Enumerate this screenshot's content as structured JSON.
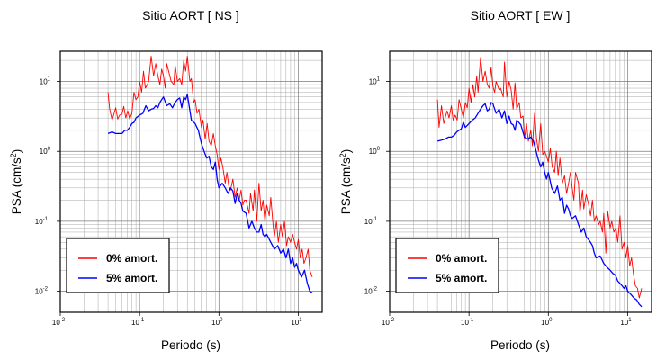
{
  "chart_data": [
    {
      "type": "line",
      "title": "Sitio AORT [ NS ]",
      "xlabel": "Periodo (s)",
      "ylabel": "PSA (cm/s²)",
      "xscale": "log",
      "yscale": "log",
      "xlim": [
        0.01,
        20
      ],
      "ylim": [
        0.005,
        27
      ],
      "x_ticks": [
        {
          "base": "10",
          "exp": "-2"
        },
        {
          "base": "10",
          "exp": "-1"
        },
        {
          "base": "10",
          "exp": "0"
        },
        {
          "base": "10",
          "exp": "1"
        }
      ],
      "y_ticks": [
        {
          "base": "10",
          "exp": "-2"
        },
        {
          "base": "10",
          "exp": "-1"
        },
        {
          "base": "10",
          "exp": "0"
        },
        {
          "base": "10",
          "exp": "1"
        }
      ],
      "grid": true,
      "legend_position": "bottom-left",
      "series": [
        {
          "name": "0% amort.",
          "color": "#ff0000",
          "x": [
            0.04,
            0.042,
            0.045,
            0.048,
            0.05,
            0.053,
            0.056,
            0.06,
            0.063,
            0.067,
            0.071,
            0.075,
            0.08,
            0.085,
            0.09,
            0.095,
            0.1,
            0.106,
            0.112,
            0.118,
            0.125,
            0.13,
            0.14,
            0.15,
            0.16,
            0.17,
            0.18,
            0.19,
            0.2,
            0.21,
            0.22,
            0.24,
            0.25,
            0.27,
            0.28,
            0.3,
            0.32,
            0.34,
            0.36,
            0.38,
            0.4,
            0.43,
            0.45,
            0.48,
            0.5,
            0.53,
            0.56,
            0.6,
            0.63,
            0.67,
            0.71,
            0.75,
            0.8,
            0.85,
            0.9,
            0.95,
            1.0,
            1.06,
            1.12,
            1.2,
            1.26,
            1.33,
            1.4,
            1.5,
            1.6,
            1.7,
            1.8,
            1.9,
            2.0,
            2.1,
            2.2,
            2.4,
            2.5,
            2.7,
            2.8,
            3.0,
            3.2,
            3.4,
            3.6,
            3.8,
            4.0,
            4.3,
            4.5,
            4.8,
            5.0,
            5.3,
            5.6,
            6.0,
            6.3,
            6.7,
            7.1,
            7.5,
            8.0,
            8.5,
            9.0,
            9.5,
            10.0,
            10.6,
            11.2,
            11.8,
            12.5,
            13.3,
            14.0,
            15.0
          ],
          "y": [
            7.0,
            4.0,
            2.8,
            3.6,
            4.2,
            2.9,
            3.3,
            3.4,
            4.4,
            3.0,
            3.8,
            2.9,
            3.5,
            7.0,
            5.5,
            6.0,
            10.0,
            7.0,
            14.0,
            8.0,
            9.0,
            10.0,
            23.0,
            12.0,
            18.0,
            12.0,
            9.0,
            15.0,
            12.0,
            8.0,
            18.0,
            12.0,
            10.0,
            9.0,
            17.0,
            10.0,
            11.0,
            9.0,
            20.0,
            14.0,
            23.0,
            10.0,
            11.0,
            5.0,
            5.5,
            3.5,
            4.0,
            2.2,
            2.8,
            1.5,
            2.5,
            1.4,
            1.2,
            1.8,
            1.2,
            0.9,
            0.55,
            0.8,
            0.6,
            0.35,
            0.5,
            0.32,
            0.28,
            0.4,
            0.22,
            0.3,
            0.2,
            0.28,
            0.17,
            0.2,
            0.2,
            0.13,
            0.25,
            0.14,
            0.28,
            0.1,
            0.35,
            0.14,
            0.2,
            0.1,
            0.17,
            0.12,
            0.22,
            0.09,
            0.06,
            0.1,
            0.05,
            0.09,
            0.06,
            0.1,
            0.045,
            0.06,
            0.05,
            0.065,
            0.05,
            0.04,
            0.055,
            0.03,
            0.04,
            0.025,
            0.03,
            0.04,
            0.02,
            0.016
          ]
        },
        {
          "name": "5% amort.",
          "color": "#0000ff",
          "x": [
            0.04,
            0.045,
            0.05,
            0.055,
            0.06,
            0.065,
            0.07,
            0.075,
            0.08,
            0.085,
            0.09,
            0.1,
            0.11,
            0.12,
            0.13,
            0.14,
            0.15,
            0.16,
            0.17,
            0.18,
            0.19,
            0.2,
            0.22,
            0.24,
            0.26,
            0.28,
            0.3,
            0.32,
            0.34,
            0.36,
            0.38,
            0.4,
            0.45,
            0.5,
            0.55,
            0.6,
            0.65,
            0.7,
            0.75,
            0.8,
            0.85,
            0.9,
            0.95,
            1.0,
            1.1,
            1.2,
            1.3,
            1.4,
            1.5,
            1.6,
            1.7,
            1.8,
            1.9,
            2.0,
            2.2,
            2.4,
            2.6,
            2.8,
            3.0,
            3.2,
            3.4,
            3.6,
            3.8,
            4.0,
            4.5,
            5.0,
            5.5,
            6.0,
            6.5,
            7.0,
            7.5,
            8.0,
            8.5,
            9.0,
            9.5,
            10.0,
            11.0,
            12.0,
            13.0,
            14.0,
            15.0
          ],
          "y": [
            1.8,
            1.9,
            1.8,
            1.8,
            1.8,
            2.0,
            2.0,
            2.2,
            2.5,
            2.6,
            3.0,
            3.3,
            3.5,
            4.5,
            3.8,
            4.0,
            4.1,
            4.5,
            4.2,
            5.0,
            5.5,
            6.0,
            4.5,
            4.8,
            4.2,
            5.0,
            5.5,
            5.8,
            4.2,
            6.0,
            5.5,
            6.5,
            2.8,
            2.5,
            2.0,
            1.3,
            1.0,
            0.8,
            0.85,
            0.6,
            0.55,
            0.7,
            0.4,
            0.3,
            0.35,
            0.3,
            0.25,
            0.3,
            0.27,
            0.18,
            0.25,
            0.2,
            0.18,
            0.14,
            0.13,
            0.08,
            0.1,
            0.08,
            0.07,
            0.07,
            0.09,
            0.065,
            0.06,
            0.065,
            0.05,
            0.04,
            0.045,
            0.035,
            0.04,
            0.03,
            0.04,
            0.025,
            0.03,
            0.022,
            0.025,
            0.02,
            0.016,
            0.02,
            0.013,
            0.01,
            0.0095
          ]
        }
      ]
    },
    {
      "type": "line",
      "title": "Sitio AORT [ EW ]",
      "xlabel": "Periodo (s)",
      "ylabel": "PSA (cm/s²)",
      "xscale": "log",
      "yscale": "log",
      "xlim": [
        0.01,
        20
      ],
      "ylim": [
        0.005,
        27
      ],
      "x_ticks": [
        {
          "base": "10",
          "exp": "-2"
        },
        {
          "base": "10",
          "exp": "-1"
        },
        {
          "base": "10",
          "exp": "0"
        },
        {
          "base": "10",
          "exp": "1"
        }
      ],
      "y_ticks": [
        {
          "base": "10",
          "exp": "-2"
        },
        {
          "base": "10",
          "exp": "-1"
        },
        {
          "base": "10",
          "exp": "0"
        },
        {
          "base": "10",
          "exp": "1"
        }
      ],
      "grid": true,
      "legend_position": "bottom-left",
      "series": [
        {
          "name": "0% amort.",
          "color": "#ff0000",
          "x": [
            0.04,
            0.042,
            0.045,
            0.048,
            0.05,
            0.053,
            0.056,
            0.06,
            0.063,
            0.067,
            0.071,
            0.075,
            0.08,
            0.085,
            0.09,
            0.095,
            0.1,
            0.106,
            0.112,
            0.118,
            0.125,
            0.13,
            0.14,
            0.15,
            0.16,
            0.17,
            0.18,
            0.19,
            0.2,
            0.21,
            0.22,
            0.24,
            0.25,
            0.27,
            0.28,
            0.3,
            0.32,
            0.34,
            0.36,
            0.38,
            0.4,
            0.43,
            0.45,
            0.48,
            0.5,
            0.53,
            0.56,
            0.6,
            0.63,
            0.67,
            0.71,
            0.75,
            0.8,
            0.85,
            0.9,
            0.95,
            1.0,
            1.06,
            1.12,
            1.2,
            1.26,
            1.33,
            1.4,
            1.5,
            1.6,
            1.7,
            1.8,
            1.9,
            2.0,
            2.1,
            2.2,
            2.4,
            2.5,
            2.7,
            2.8,
            3.0,
            3.2,
            3.4,
            3.6,
            3.8,
            4.0,
            4.3,
            4.5,
            4.8,
            5.0,
            5.3,
            5.6,
            6.0,
            6.3,
            6.7,
            7.1,
            7.5,
            8.0,
            8.5,
            9.0,
            9.5,
            10.0,
            10.6,
            11.2,
            11.8,
            12.5,
            13.3,
            14.0,
            15.0
          ],
          "y": [
            5.5,
            2.2,
            4.5,
            2.5,
            3.0,
            3.8,
            3.0,
            4.5,
            2.8,
            3.3,
            2.8,
            5.5,
            4.0,
            3.0,
            5.0,
            4.2,
            8.0,
            5.0,
            9.0,
            6.0,
            12.0,
            7.0,
            22.0,
            10.0,
            14.0,
            9.0,
            8.0,
            16.0,
            8.5,
            7.0,
            10.0,
            7.5,
            8.0,
            6.0,
            19.0,
            6.0,
            10.0,
            7.5,
            4.0,
            9.5,
            4.0,
            5.0,
            3.0,
            3.2,
            1.5,
            2.5,
            1.4,
            2.0,
            1.2,
            3.5,
            1.5,
            1.0,
            2.5,
            0.9,
            1.0,
            0.85,
            0.7,
            1.1,
            0.6,
            0.5,
            1.0,
            0.45,
            0.8,
            0.35,
            0.45,
            0.25,
            0.35,
            0.5,
            0.3,
            0.2,
            0.5,
            0.35,
            0.13,
            0.28,
            0.15,
            0.24,
            0.18,
            0.12,
            0.2,
            0.1,
            0.12,
            0.09,
            0.1,
            0.07,
            0.13,
            0.035,
            0.14,
            0.08,
            0.1,
            0.07,
            0.08,
            0.05,
            0.12,
            0.04,
            0.05,
            0.03,
            0.045,
            0.023,
            0.03,
            0.018,
            0.012,
            0.011,
            0.008,
            0.011
          ]
        },
        {
          "name": "5% amort.",
          "color": "#0000ff",
          "x": [
            0.04,
            0.045,
            0.05,
            0.055,
            0.06,
            0.065,
            0.07,
            0.075,
            0.08,
            0.085,
            0.09,
            0.1,
            0.11,
            0.12,
            0.13,
            0.14,
            0.15,
            0.16,
            0.17,
            0.18,
            0.19,
            0.2,
            0.22,
            0.24,
            0.26,
            0.28,
            0.3,
            0.32,
            0.34,
            0.36,
            0.38,
            0.4,
            0.45,
            0.5,
            0.55,
            0.6,
            0.65,
            0.7,
            0.75,
            0.8,
            0.85,
            0.9,
            0.95,
            1.0,
            1.1,
            1.2,
            1.3,
            1.4,
            1.5,
            1.6,
            1.7,
            1.8,
            1.9,
            2.0,
            2.2,
            2.4,
            2.6,
            2.8,
            3.0,
            3.2,
            3.4,
            3.6,
            3.8,
            4.0,
            4.5,
            5.0,
            5.5,
            6.0,
            6.5,
            7.0,
            7.5,
            8.0,
            8.5,
            9.0,
            9.5,
            10.0,
            11.0,
            12.0,
            13.0,
            14.0,
            15.0
          ],
          "y": [
            1.4,
            1.45,
            1.5,
            1.6,
            1.6,
            1.7,
            1.9,
            2.0,
            2.1,
            2.6,
            2.2,
            2.5,
            2.8,
            3.0,
            3.5,
            4.0,
            4.5,
            4.8,
            3.8,
            4.0,
            5.0,
            4.8,
            3.5,
            4.0,
            3.0,
            3.8,
            2.5,
            3.2,
            2.5,
            2.4,
            2.0,
            2.8,
            2.4,
            1.6,
            1.5,
            1.6,
            1.4,
            1.0,
            0.75,
            0.6,
            0.7,
            0.5,
            0.4,
            0.5,
            0.3,
            0.25,
            0.32,
            0.2,
            0.22,
            0.13,
            0.17,
            0.15,
            0.12,
            0.11,
            0.12,
            0.09,
            0.07,
            0.08,
            0.06,
            0.055,
            0.05,
            0.045,
            0.035,
            0.03,
            0.032,
            0.025,
            0.022,
            0.02,
            0.018,
            0.017,
            0.014,
            0.013,
            0.012,
            0.011,
            0.012,
            0.01,
            0.009,
            0.008,
            0.0075,
            0.0065,
            0.006
          ]
        }
      ]
    }
  ]
}
